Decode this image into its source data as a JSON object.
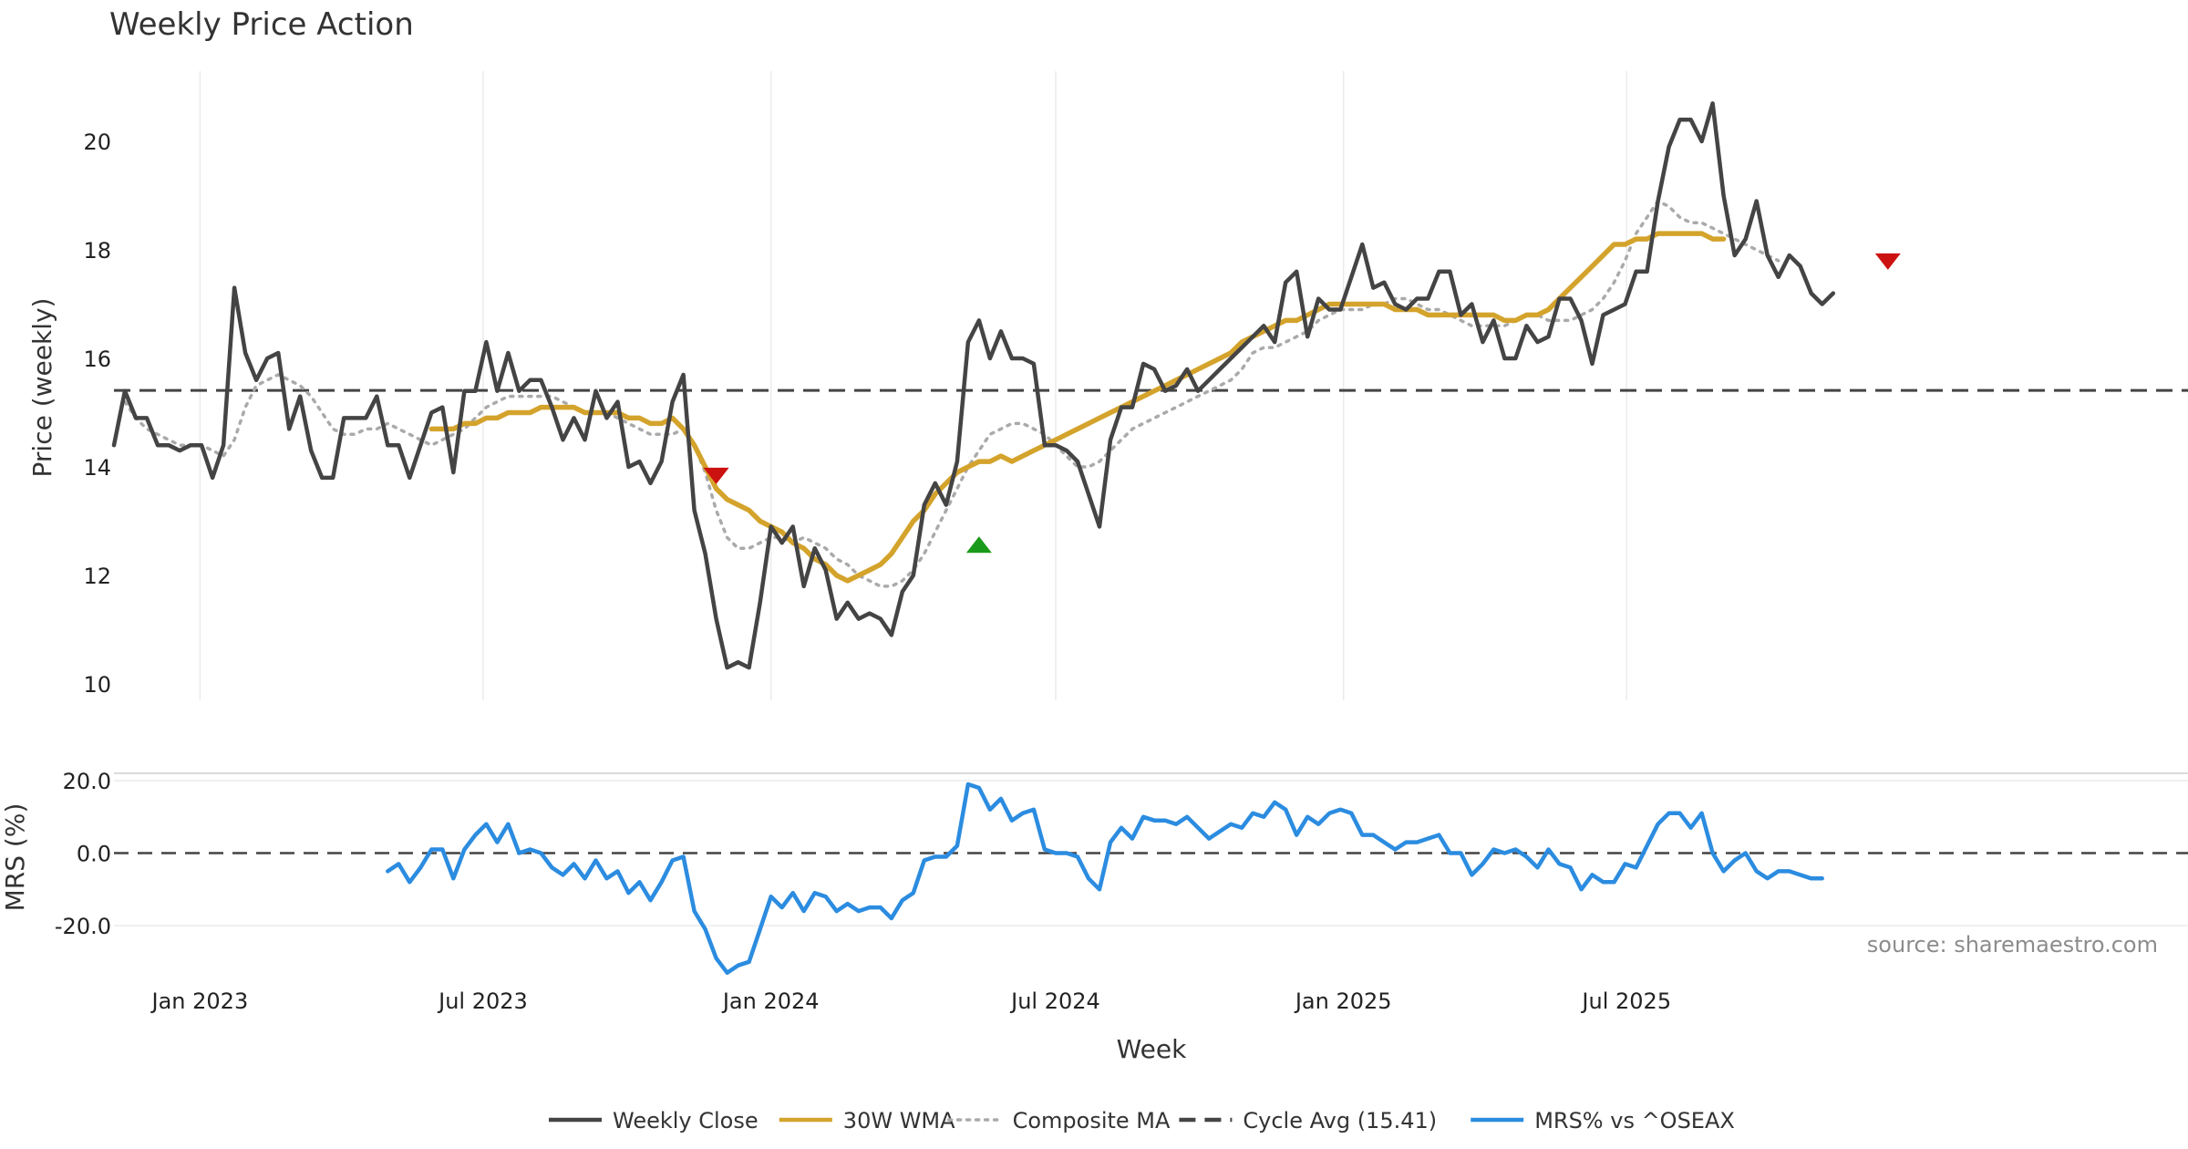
{
  "chart_data": {
    "type": "line",
    "title": "Weekly Price Action",
    "source": "source: sharemaestro.com",
    "xlabel": "Week",
    "x_ticks": [
      "Jan 2023",
      "Jul 2023",
      "Jan 2024",
      "Jul 2024",
      "Jan 2025",
      "Jul 2025"
    ],
    "start_week": "2022-11-07",
    "week_count": 185,
    "price_panel": {
      "ylabel": "Price (weekly)",
      "ylim": [
        9.7,
        21.3
      ],
      "yticks": [
        "10",
        "12",
        "14",
        "16",
        "18",
        "20"
      ],
      "cycle_avg": 15.41,
      "series": [
        {
          "name": "Weekly Close",
          "color": "#444444",
          "style": "solid",
          "start_index": 0,
          "values": [
            14.4,
            15.4,
            14.9,
            14.9,
            14.4,
            14.4,
            14.3,
            14.4,
            14.4,
            13.8,
            14.4,
            17.3,
            16.1,
            15.6,
            16.0,
            16.1,
            14.7,
            15.3,
            14.3,
            13.8,
            13.8,
            14.9,
            14.9,
            14.9,
            15.3,
            14.4,
            14.4,
            13.8,
            14.4,
            15.0,
            15.1,
            13.9,
            15.4,
            15.4,
            16.3,
            15.4,
            16.1,
            15.4,
            15.6,
            15.6,
            15.1,
            14.5,
            14.9,
            14.5,
            15.4,
            14.9,
            15.2,
            14.0,
            14.1,
            13.7,
            14.1,
            15.2,
            15.7,
            13.2,
            12.4,
            11.2,
            10.3,
            10.4,
            10.3,
            11.5,
            12.9,
            12.6,
            12.9,
            11.8,
            12.5,
            12.1,
            11.2,
            11.5,
            11.2,
            11.3,
            11.2,
            10.9,
            11.7,
            12.0,
            13.3,
            13.7,
            13.3,
            14.1,
            16.3,
            16.7,
            16.0,
            16.5,
            16.0,
            16.0,
            15.9,
            14.4,
            14.4,
            14.3,
            14.1,
            13.5,
            12.9,
            14.5,
            15.1,
            15.1,
            15.9,
            15.8,
            15.4,
            15.5,
            15.8,
            15.4,
            15.6,
            15.8,
            16.0,
            16.2,
            16.4,
            16.6,
            16.3,
            17.4,
            17.6,
            16.4,
            17.1,
            16.9,
            16.9,
            17.5,
            18.1,
            17.3,
            17.4,
            17.0,
            16.9,
            17.1,
            17.1,
            17.6,
            17.6,
            16.8,
            17.0,
            16.3,
            16.7,
            16.0,
            16.0,
            16.6,
            16.3,
            16.4,
            17.1,
            17.1,
            16.7,
            15.9,
            16.8,
            16.9,
            17.0,
            17.6,
            17.6,
            18.9,
            19.9,
            20.4,
            20.4,
            20.0,
            20.7,
            19.0,
            17.9,
            18.2,
            18.9,
            17.9,
            17.5,
            17.9,
            17.7,
            17.2,
            17.0,
            17.2
          ]
        },
        {
          "name": "30W WMA",
          "color": "#d4a32c",
          "style": "solid",
          "start_index": 29,
          "values": [
            14.7,
            14.7,
            14.7,
            14.8,
            14.8,
            14.9,
            14.9,
            15.0,
            15.0,
            15.0,
            15.1,
            15.1,
            15.1,
            15.1,
            15.0,
            15.0,
            15.0,
            15.0,
            14.9,
            14.9,
            14.8,
            14.8,
            14.9,
            14.7,
            14.4,
            14.0,
            13.6,
            13.4,
            13.3,
            13.2,
            13.0,
            12.9,
            12.8,
            12.6,
            12.5,
            12.3,
            12.2,
            12.0,
            11.9,
            12.0,
            12.1,
            12.2,
            12.4,
            12.7,
            13.0,
            13.2,
            13.5,
            13.7,
            13.9,
            14.0,
            14.1,
            14.1,
            14.2,
            14.1,
            14.2,
            14.3,
            14.4,
            14.5,
            14.6,
            14.7,
            14.8,
            14.9,
            15.0,
            15.1,
            15.2,
            15.3,
            15.4,
            15.5,
            15.6,
            15.7,
            15.8,
            15.9,
            16.0,
            16.1,
            16.3,
            16.4,
            16.5,
            16.6,
            16.7,
            16.7,
            16.8,
            16.9,
            17.0,
            17.0,
            17.0,
            17.0,
            17.0,
            17.0,
            16.9,
            16.9,
            16.9,
            16.8,
            16.8,
            16.8,
            16.8,
            16.8,
            16.8,
            16.8,
            16.7,
            16.7,
            16.8,
            16.8,
            16.9,
            17.1,
            17.3,
            17.5,
            17.7,
            17.9,
            18.1,
            18.1,
            18.2,
            18.2,
            18.3,
            18.3,
            18.3,
            18.3,
            18.3,
            18.2,
            18.2
          ]
        },
        {
          "name": "Composite MA",
          "color": "#aaaaaa",
          "style": "dotted",
          "start_index": 1,
          "values": [
            15.2,
            14.9,
            14.7,
            14.6,
            14.5,
            14.4,
            14.4,
            14.4,
            14.3,
            14.2,
            14.5,
            15.1,
            15.5,
            15.6,
            15.7,
            15.6,
            15.5,
            15.3,
            15.0,
            14.7,
            14.6,
            14.6,
            14.7,
            14.7,
            14.8,
            14.7,
            14.6,
            14.5,
            14.4,
            14.5,
            14.6,
            14.7,
            14.9,
            15.1,
            15.2,
            15.3,
            15.3,
            15.3,
            15.3,
            15.3,
            15.2,
            15.1,
            15.0,
            15.0,
            15.0,
            14.9,
            14.8,
            14.7,
            14.6,
            14.6,
            14.6,
            14.7,
            14.4,
            13.9,
            13.2,
            12.7,
            12.5,
            12.5,
            12.6,
            12.7,
            12.7,
            12.6,
            12.7,
            12.6,
            12.5,
            12.3,
            12.2,
            12.0,
            11.9,
            11.8,
            11.8,
            11.9,
            12.1,
            12.4,
            12.8,
            13.2,
            13.6,
            14.0,
            14.3,
            14.6,
            14.7,
            14.8,
            14.8,
            14.7,
            14.6,
            14.4,
            14.2,
            14.0,
            14.0,
            14.1,
            14.3,
            14.5,
            14.7,
            14.8,
            14.9,
            15.0,
            15.1,
            15.2,
            15.3,
            15.4,
            15.5,
            15.6,
            15.8,
            16.1,
            16.2,
            16.2,
            16.3,
            16.4,
            16.5,
            16.7,
            16.8,
            16.9,
            16.9,
            16.9,
            17.0,
            17.0,
            17.1,
            17.1,
            17.0,
            16.9,
            16.9,
            16.8,
            16.7,
            16.6,
            16.6,
            16.6,
            16.6,
            16.7,
            16.8,
            16.8,
            16.7,
            16.7,
            16.7,
            16.8,
            16.9,
            17.1,
            17.4,
            17.8,
            18.3,
            18.6,
            18.9,
            18.8,
            18.6,
            18.5,
            18.5,
            18.4,
            18.3,
            18.2,
            18.1,
            18.0,
            17.9,
            17.8
          ]
        }
      ],
      "signals": [
        {
          "type": "sell",
          "color": "#cc1111",
          "x_index": 55,
          "y": 13.85
        },
        {
          "type": "buy",
          "color": "#1a9a1a",
          "x_index": 79,
          "y": 12.55
        },
        {
          "type": "sell",
          "color": "#cc1111",
          "x_index": 162,
          "y": 17.8
        }
      ]
    },
    "mrs_panel": {
      "ylabel": "MRS (%)",
      "ylim": [
        -34,
        22
      ],
      "yticks": [
        "20.0",
        "0.0",
        "-20.0"
      ],
      "series": [
        {
          "name": "MRS% vs ^OSEAX",
          "color": "#2b8ce0",
          "style": "solid",
          "start_index": 25,
          "values": [
            -5,
            -3,
            -8,
            -4,
            1,
            1,
            -7,
            1,
            5,
            8,
            3,
            8,
            0,
            1,
            0,
            -4,
            -6,
            -3,
            -7,
            -2,
            -7,
            -5,
            -11,
            -8,
            -13,
            -8,
            -2,
            -1,
            -16,
            -21,
            -29,
            -33,
            -31,
            -30,
            -21,
            -12,
            -15,
            -11,
            -16,
            -11,
            -12,
            -16,
            -14,
            -16,
            -15,
            -15,
            -18,
            -13,
            -11,
            -2,
            -1,
            -1,
            2,
            19,
            18,
            12,
            15,
            9,
            11,
            12,
            1,
            0,
            0,
            -1,
            -7,
            -10,
            3,
            7,
            4,
            10,
            9,
            9,
            8,
            10,
            7,
            4,
            6,
            8,
            7,
            11,
            10,
            14,
            12,
            5,
            10,
            8,
            11,
            12,
            11,
            5,
            5,
            3,
            1,
            3,
            3,
            4,
            5,
            0,
            0,
            -6,
            -3,
            1,
            0,
            1,
            -1,
            -4,
            1,
            -3,
            -4,
            -10,
            -6,
            -8,
            -8,
            -3,
            -4,
            2,
            8,
            11,
            11,
            7,
            11,
            0,
            -5,
            -2,
            0,
            -5,
            -7,
            -5,
            -5,
            -6,
            -7,
            -7
          ]
        }
      ]
    },
    "legend": [
      {
        "label": "Weekly Close",
        "color": "#444444",
        "style": "solid"
      },
      {
        "label": "30W WMA",
        "color": "#d4a32c",
        "style": "solid"
      },
      {
        "label": "Composite MA",
        "color": "#aaaaaa",
        "style": "dotted"
      },
      {
        "label": "Cycle Avg (15.41)",
        "color": "#444444",
        "style": "dashed"
      },
      {
        "label": "MRS% vs ^OSEAX",
        "color": "#2b8ce0",
        "style": "solid"
      }
    ],
    "legend_position": "bottom",
    "grid": true
  }
}
